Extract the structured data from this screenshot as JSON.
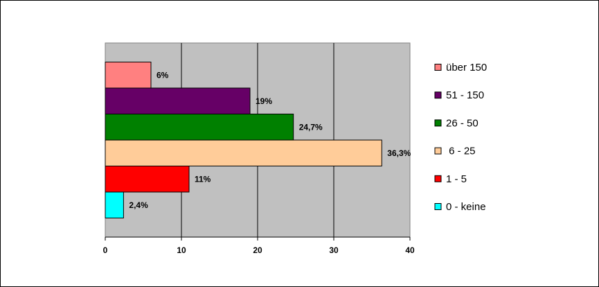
{
  "chart_data": {
    "type": "bar",
    "orientation": "horizontal",
    "categories": [
      null
    ],
    "series": [
      {
        "name": "über 150",
        "color": "#ff8080",
        "values": [
          6
        ],
        "value_labels": [
          "6%"
        ]
      },
      {
        "name": "51 - 150",
        "color": "#660066",
        "values": [
          19
        ],
        "value_labels": [
          "19%"
        ]
      },
      {
        "name": "26 - 50",
        "color": "#008000",
        "values": [
          24.7
        ],
        "value_labels": [
          "24,7%"
        ]
      },
      {
        "name": " 6 - 25",
        "color": "#ffcc99",
        "values": [
          36.3
        ],
        "value_labels": [
          "36,3%"
        ]
      },
      {
        "name": "1 - 5",
        "color": "#ff0000",
        "values": [
          11
        ],
        "value_labels": [
          "11%"
        ]
      },
      {
        "name": "0 - keine",
        "color": "#00ffff",
        "values": [
          2.4
        ],
        "value_labels": [
          "2,4%"
        ]
      }
    ],
    "xlim": [
      0,
      40
    ],
    "xticks": [
      0,
      10,
      20,
      30,
      40
    ],
    "grid": true,
    "legend": "right",
    "plot_background": "#c0c0c0"
  }
}
